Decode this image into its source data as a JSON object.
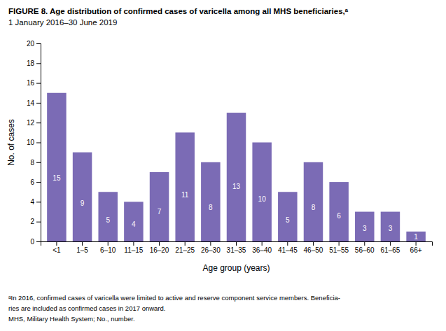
{
  "chart_data": {
    "type": "bar",
    "title": "FIGURE 8. Age distribution of confirmed cases of varicella among all MHS beneficiaries,ᵃ",
    "subtitle": "1 January 2016–30 June 2019",
    "categories": [
      "<1",
      "1–5",
      "6–10",
      "11–15",
      "16–20",
      "21–25",
      "26–30",
      "31–35",
      "36–40",
      "41–45",
      "46–50",
      "51–55",
      "56–60",
      "61–65",
      "66+"
    ],
    "values": [
      15,
      9,
      5,
      4,
      7,
      11,
      8,
      13,
      10,
      5,
      8,
      6,
      3,
      3,
      1
    ],
    "color": "#7B6BB5",
    "x_label": "Age group (years)",
    "y_label": "No. of cases",
    "ylim": [
      0,
      20
    ],
    "yticks": [
      0,
      2,
      4,
      6,
      8,
      10,
      12,
      14,
      16,
      18,
      20
    ],
    "grid": false,
    "data_labels": true,
    "annotations": [
      "ᵃIn 2016, confirmed cases of varicella were limited to active and reserve component service members. Beneficia-",
      "ries are included as confirmed cases in 2017 onward.",
      "MHS, Military Health System; No., number."
    ]
  }
}
